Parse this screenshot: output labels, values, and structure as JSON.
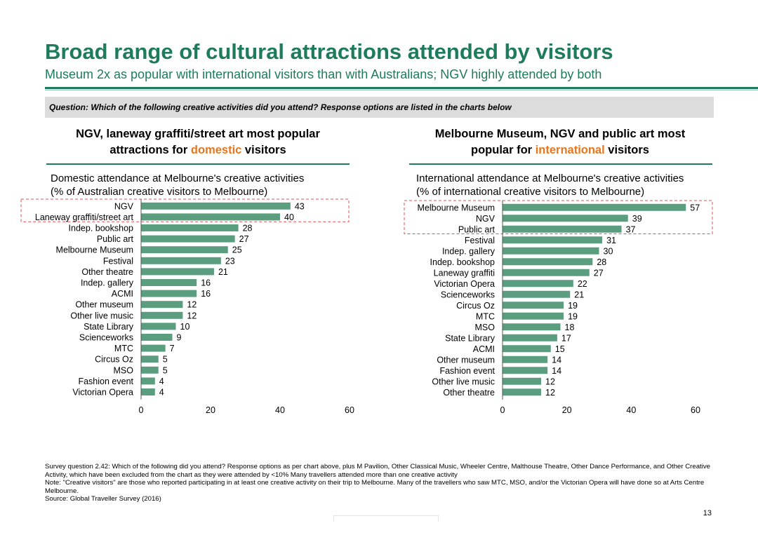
{
  "header": {
    "title": "Broad range of cultural attractions attended by visitors",
    "subtitle": "Museum 2x as popular with international visitors than with Australians; NGV highly attended by both"
  },
  "question": "Question: Which of the following creative activities did you attend? Response options are listed in the charts below",
  "left_panel": {
    "heading_line1": "NGV, laneway graffiti/street art most popular",
    "heading_pre": "attractions for ",
    "heading_highlight": "domestic",
    "heading_post": " visitors",
    "chart_title": "Domestic attendance at Melbourne's creative activities",
    "chart_subtitle": "(% of Australian creative visitors to Melbourne)"
  },
  "right_panel": {
    "heading_line1": "Melbourne Museum, NGV and public art most",
    "heading_pre": "popular for ",
    "heading_highlight": "international",
    "heading_post": " visitors",
    "chart_title": "International attendance at Melbourne's creative activities",
    "chart_subtitle": "(% of international creative visitors to Melbourne)"
  },
  "colors": {
    "brand": "#1e7b5c",
    "bar": "#5a9e7f",
    "highlight": "#e8761e",
    "callout": "#e05050"
  },
  "chart_data": [
    {
      "type": "bar",
      "orientation": "horizontal",
      "title": "Domestic attendance at Melbourne's creative activities",
      "subtitle": "(% of Australian creative visitors to Melbourne)",
      "categories": [
        "NGV",
        "Laneway graffiti/street art",
        "Indep. bookshop",
        "Public art",
        "Melbourne Museum",
        "Festival",
        "Other theatre",
        "Indep. gallery",
        "ACMI",
        "Other museum",
        "Other live music",
        "State Library",
        "Scienceworks",
        "MTC",
        "Circus Oz",
        "MSO",
        "Fashion event",
        "Victorian Opera"
      ],
      "values": [
        43,
        40,
        28,
        27,
        25,
        23,
        21,
        16,
        16,
        12,
        12,
        10,
        9,
        7,
        5,
        5,
        4,
        4
      ],
      "xlim": [
        0,
        60
      ],
      "xticks": [
        0,
        20,
        40,
        60
      ],
      "highlighted": [
        "NGV",
        "Laneway graffiti/street art"
      ],
      "grid": false
    },
    {
      "type": "bar",
      "orientation": "horizontal",
      "title": "International attendance at Melbourne's creative activities",
      "subtitle": "(% of international creative visitors to Melbourne)",
      "categories": [
        "Melbourne Museum",
        "NGV",
        "Public art",
        "Festival",
        "Indep. gallery",
        "Indep. bookshop",
        "Laneway graffiti",
        "Victorian Opera",
        "Scienceworks",
        "Circus Oz",
        "MTC",
        "MSO",
        "State Library",
        "ACMI",
        "Other museum",
        "Fashion event",
        "Other live music",
        "Other theatre"
      ],
      "values": [
        57,
        39,
        37,
        31,
        30,
        28,
        27,
        22,
        21,
        19,
        19,
        18,
        17,
        15,
        14,
        14,
        12,
        12
      ],
      "xlim": [
        0,
        60
      ],
      "xticks": [
        0,
        20,
        40,
        60
      ],
      "highlighted": [
        "Melbourne Museum",
        "NGV",
        "Public art"
      ],
      "grid": false
    }
  ],
  "footnotes": [
    "Survey question 2.42: Which of the following did you attend? Response options as per chart above, plus M Pavilion, Other Classical Music, Wheeler Centre, Malthouse Theatre, Other Dance Performance, and Other Creative Activity, which have been excluded from the chart as they were attended by <10% Many travellers attended more than one creative activity",
    "Note: \"Creative visitors\" are those who reported participating in at least one creative activity on their trip to Melbourne. Many of the travellers who saw MTC, MSO, and/or the Victorian Opera will have done so at Arts Centre Melbourne.",
    "Source: Global Traveller Survey (2016)"
  ],
  "page_number": "13"
}
